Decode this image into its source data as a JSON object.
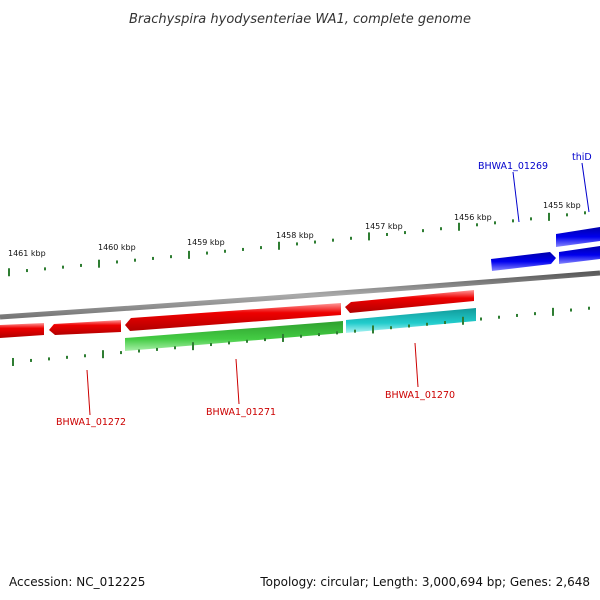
{
  "header": {
    "title": "Brachyspira hyodysenteriae WA1, complete genome"
  },
  "footer": {
    "accession": "Accession: NC_012225",
    "summary": "Topology: circular; Length: 3,000,694 bp; Genes: 2,648"
  },
  "ruler": {
    "ticks": [
      {
        "label": "1461 kbp"
      },
      {
        "label": "1460 kbp"
      },
      {
        "label": "1459 kbp"
      },
      {
        "label": "1458 kbp"
      },
      {
        "label": "1457 kbp"
      },
      {
        "label": "1456 kbp"
      },
      {
        "label": "1455 kbp"
      }
    ]
  },
  "genes": [
    {
      "name": "BHWA1_01272",
      "color": "#cc0000"
    },
    {
      "name": "BHWA1_01271",
      "color": "#cc0000"
    },
    {
      "name": "BHWA1_01270",
      "color": "#cc0000"
    },
    {
      "name": "BHWA1_01269",
      "color": "#0000cc"
    },
    {
      "name": "thiD",
      "color": "#0000cc"
    }
  ],
  "colors": {
    "backbone": "#888888",
    "tick": "#2e7d32",
    "red_feature": "#e00000",
    "green_feature": "#33bb33",
    "cyan_feature": "#22cccc",
    "blue_feature": "#0000ee"
  }
}
